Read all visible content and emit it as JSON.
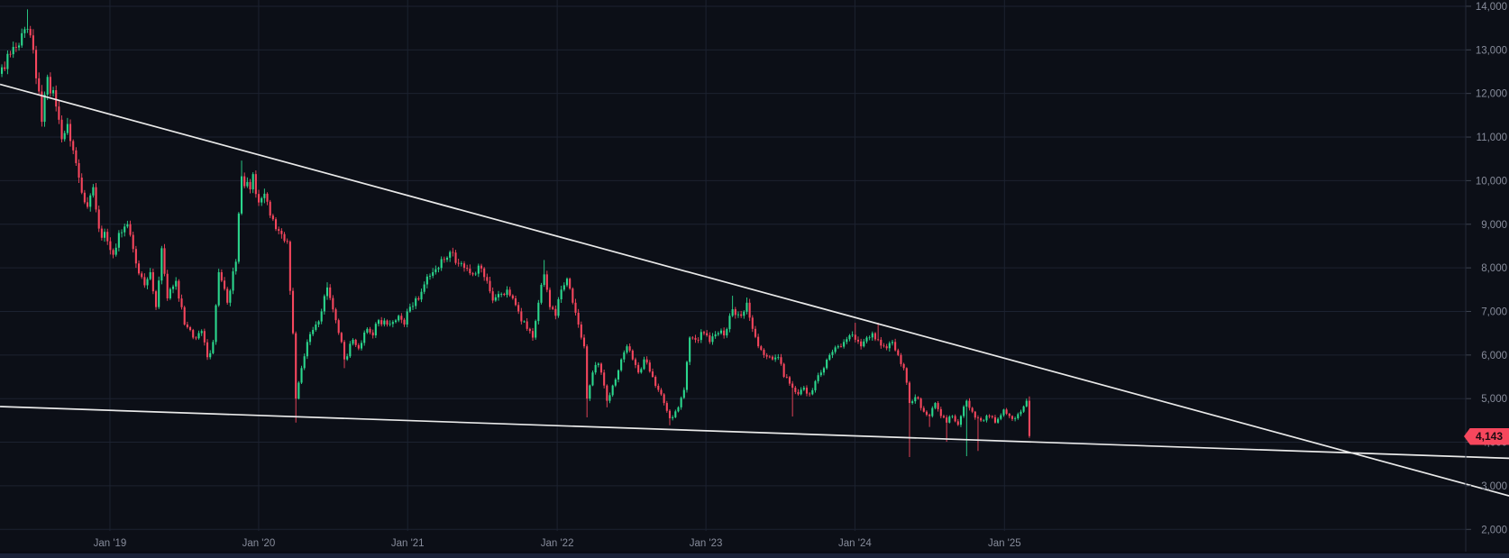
{
  "chart_data": {
    "type": "candlestick",
    "timeframe": "weekly",
    "grid": true,
    "legend": "none",
    "colors": {
      "background": "#0c0f17",
      "grid": "#1c2230",
      "axis_border": "#242a38",
      "tick": "#3d4350",
      "axis_text": "#878c9b",
      "up": "#2bd78d",
      "down": "#f6465d",
      "trendline": "#e9e9e9",
      "bottom_strip": "#1a2238",
      "price_tag_bg": "#f6475d",
      "price_tag_text": "#1c0b11"
    },
    "price_axis": {
      "side": "right",
      "current_price": 4143,
      "current_price_label": "4,143",
      "visible_range": [
        1950,
        14150
      ],
      "ticks": [
        {
          "label": "14,000",
          "value": 14000
        },
        {
          "label": "13,000",
          "value": 13000
        },
        {
          "label": "12,000",
          "value": 12000
        },
        {
          "label": "11,000",
          "value": 11000
        },
        {
          "label": "10,000",
          "value": 10000
        },
        {
          "label": "9,000",
          "value": 9000
        },
        {
          "label": "8,000",
          "value": 8000
        },
        {
          "label": "7,000",
          "value": 7000
        },
        {
          "label": "6,000",
          "value": 6000
        },
        {
          "label": "5,000",
          "value": 5000
        },
        {
          "label": "4,000",
          "value": 4000
        },
        {
          "label": "3,000",
          "value": 3000
        },
        {
          "label": "2,000",
          "value": 2000
        }
      ]
    },
    "time_axis": {
      "ticks": [
        {
          "label": "Jan '19",
          "week": 38.2
        },
        {
          "label": "Jan '20",
          "week": 90.3
        },
        {
          "label": "Jan '21",
          "week": 142.5
        },
        {
          "label": "Jan '22",
          "week": 194.9
        },
        {
          "label": "Jan '23",
          "week": 247.0
        },
        {
          "label": "Jan '24",
          "week": 299.2
        },
        {
          "label": "Jan '25",
          "week": 351.6
        }
      ]
    },
    "trendlines": [
      {
        "name": "upper-descending-trendline",
        "w1": -0.3,
        "p1": 12210,
        "w2": 528.4,
        "p2": 2770
      },
      {
        "name": "lower-support-trendline",
        "w1": -0.3,
        "p1": 4818,
        "w2": 528.4,
        "p2": 3631
      }
    ],
    "first_open": 12450,
    "anchors_note": "weekly close anchors [week, close, wickLowOverride, wickHighOverride]; intermediate weeks interpolated",
    "anchors": [
      [
        0,
        12600
      ],
      [
        3,
        12900
      ],
      [
        6,
        13100
      ],
      [
        9,
        13480,
        null,
        13930
      ],
      [
        11,
        13000
      ],
      [
        14,
        11350
      ],
      [
        16,
        12380
      ],
      [
        19,
        11700
      ],
      [
        21,
        10950
      ],
      [
        23,
        11300
      ],
      [
        27,
        10070
      ],
      [
        30,
        9400
      ],
      [
        32,
        9850
      ],
      [
        34,
        8900
      ],
      [
        37,
        8610
      ],
      [
        39,
        8300
      ],
      [
        41,
        8800
      ],
      [
        44,
        9000,
        null,
        9080
      ],
      [
        47,
        8100
      ],
      [
        50,
        7600
      ],
      [
        52,
        7900
      ],
      [
        54,
        7100
      ],
      [
        56,
        8450
      ],
      [
        58,
        7300
      ],
      [
        61,
        7700
      ],
      [
        64,
        6700
      ],
      [
        67,
        6400
      ],
      [
        70,
        6550
      ],
      [
        72,
        5950
      ],
      [
        74,
        6300
      ],
      [
        76,
        7900
      ],
      [
        79,
        7200
      ],
      [
        82,
        8140
      ],
      [
        84,
        10100,
        null,
        10460
      ],
      [
        87,
        9800
      ],
      [
        88,
        10150
      ],
      [
        90,
        9500
      ],
      [
        92,
        9700
      ],
      [
        94,
        9200
      ],
      [
        97,
        8850
      ],
      [
        100,
        8600
      ],
      [
        102,
        6500
      ],
      [
        103,
        5000,
        4450,
        null
      ],
      [
        105,
        5700
      ],
      [
        107,
        6300
      ],
      [
        110,
        6700
      ],
      [
        112,
        7000
      ],
      [
        114,
        7550,
        null,
        7670
      ],
      [
        117,
        6800
      ],
      [
        119,
        6300
      ],
      [
        120,
        5900,
        5700,
        null
      ],
      [
        123,
        6350
      ],
      [
        125,
        6150
      ],
      [
        128,
        6600
      ],
      [
        130,
        6450
      ],
      [
        132,
        6800
      ],
      [
        135,
        6700
      ],
      [
        139,
        6900
      ],
      [
        141,
        6700
      ],
      [
        142,
        7000
      ],
      [
        145,
        7300
      ],
      [
        147,
        7450
      ],
      [
        149,
        7800
      ],
      [
        151,
        7900
      ],
      [
        154,
        8200
      ],
      [
        158,
        8350,
        null,
        8460
      ],
      [
        160,
        8100
      ],
      [
        162,
        8000
      ],
      [
        165,
        7850
      ],
      [
        167,
        8050
      ],
      [
        170,
        7700
      ],
      [
        172,
        7250
      ],
      [
        174,
        7400
      ],
      [
        177,
        7500
      ],
      [
        179,
        7300
      ],
      [
        181,
        7000
      ],
      [
        184,
        6600
      ],
      [
        186,
        6400
      ],
      [
        188,
        7200
      ],
      [
        190,
        7850,
        null,
        8180
      ],
      [
        192,
        7100
      ],
      [
        194,
        6900
      ],
      [
        196,
        7500
      ],
      [
        198,
        7750
      ],
      [
        200,
        7200
      ],
      [
        202,
        6700
      ],
      [
        204,
        6200
      ],
      [
        205,
        5000,
        4570,
        null
      ],
      [
        207,
        5600
      ],
      [
        209,
        5800
      ],
      [
        211,
        5300
      ],
      [
        212,
        4950,
        4800,
        null
      ],
      [
        214,
        5300
      ],
      [
        217,
        5900
      ],
      [
        219,
        6200
      ],
      [
        221,
        5900
      ],
      [
        223,
        5600
      ],
      [
        225,
        5900
      ],
      [
        228,
        5500
      ],
      [
        230,
        5200
      ],
      [
        232,
        4900
      ],
      [
        234,
        4550,
        4390,
        null
      ],
      [
        237,
        4800
      ],
      [
        239,
        5200
      ],
      [
        241,
        6400
      ],
      [
        243,
        6350
      ],
      [
        246,
        6500
      ],
      [
        248,
        6300
      ],
      [
        251,
        6500
      ],
      [
        253,
        6450
      ],
      [
        255,
        6900
      ],
      [
        256,
        7050,
        null,
        7360
      ],
      [
        259,
        6900
      ],
      [
        261,
        7200,
        null,
        7320
      ],
      [
        263,
        6600
      ],
      [
        265,
        6200
      ],
      [
        267,
        6000
      ],
      [
        270,
        5900
      ],
      [
        272,
        5950
      ],
      [
        274,
        5500
      ],
      [
        277,
        5250,
        4590,
        null
      ],
      [
        279,
        5100
      ],
      [
        281,
        5250
      ],
      [
        283,
        5100
      ],
      [
        285,
        5400
      ],
      [
        288,
        5700
      ],
      [
        290,
        6000
      ],
      [
        293,
        6200
      ],
      [
        295,
        6300
      ],
      [
        297,
        6450
      ],
      [
        299,
        6350,
        null,
        6740
      ],
      [
        301,
        6200
      ],
      [
        303,
        6400
      ],
      [
        305,
        6500
      ],
      [
        307,
        6350,
        null,
        6740
      ],
      [
        309,
        6200
      ],
      [
        312,
        6300
      ],
      [
        314,
        6000
      ],
      [
        316,
        5700
      ],
      [
        318,
        4900,
        3660,
        null
      ],
      [
        321,
        5000
      ],
      [
        323,
        4700
      ],
      [
        325,
        4600,
        4350,
        null
      ],
      [
        327,
        4900
      ],
      [
        329,
        4600
      ],
      [
        331,
        4450,
        4010,
        null
      ],
      [
        333,
        4600
      ],
      [
        335,
        4400
      ],
      [
        338,
        4950,
        3680,
        null
      ],
      [
        340,
        4700
      ],
      [
        342,
        4550,
        3800,
        null
      ],
      [
        344,
        4500
      ],
      [
        346,
        4600
      ],
      [
        348,
        4450
      ],
      [
        351,
        4750
      ],
      [
        353,
        4600
      ],
      [
        355,
        4550
      ],
      [
        357,
        4700
      ],
      [
        359,
        4950
      ],
      [
        360,
        4143,
        4100,
        5050
      ]
    ]
  }
}
